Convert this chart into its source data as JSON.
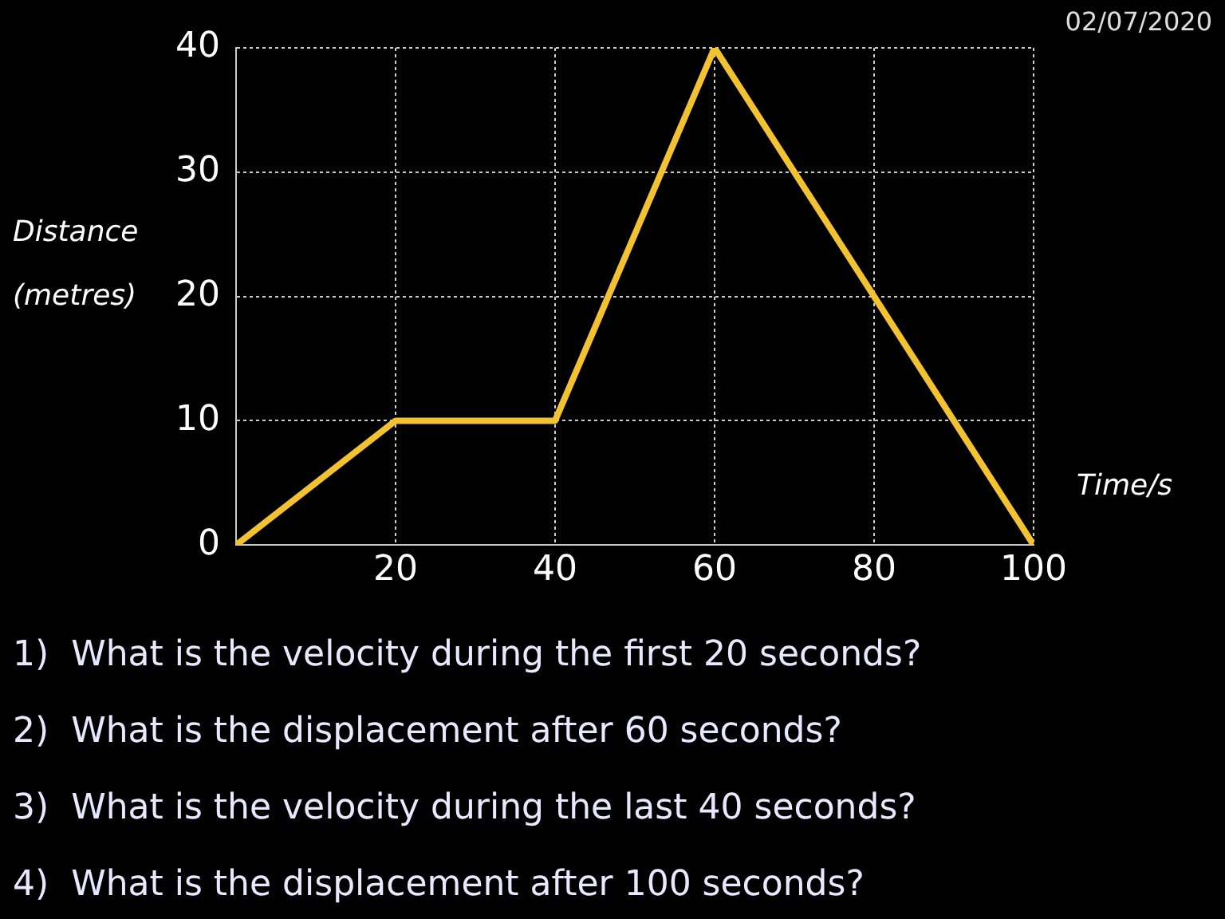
{
  "chart_data": {
    "type": "line",
    "xlabel": "Time/s",
    "ylabel": "Distance (metres)",
    "x": [
      0,
      20,
      40,
      60,
      100
    ],
    "values": [
      0,
      10,
      10,
      40,
      0
    ],
    "color": "#f2c230",
    "xlim": [
      0,
      100
    ],
    "xticks": [
      {
        "value": 0,
        "label": null
      },
      20,
      40,
      60,
      80,
      100
    ],
    "ylim": [
      0,
      40
    ],
    "yticks": [
      0,
      10,
      20,
      30,
      40
    ],
    "grid": true,
    "marker": "none",
    "line_style": "solid",
    "annotations": [
      "02/07/2020",
      "1)  What is the velocity during the first 20 seconds?",
      "2)  What is the displacement after 60 seconds?",
      "3)  What is the velocity during the last 40 seconds?",
      "4)  What is the displacement after 100 seconds?"
    ]
  }
}
